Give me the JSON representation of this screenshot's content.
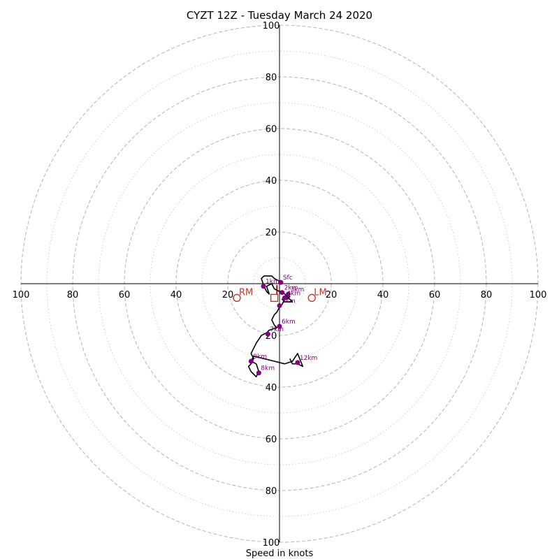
{
  "chart_data": {
    "type": "hodograph",
    "title": "CYZT 12Z - Tuesday March 24 2020",
    "xlabel": "Speed in knots",
    "rings_dashed": [
      20,
      40,
      60,
      80,
      100
    ],
    "rings_dotted": [
      10,
      30,
      50,
      70,
      90
    ],
    "tick_labels": [
      "100",
      "80",
      "60",
      "40",
      "20",
      "20",
      "40",
      "60",
      "80",
      "100"
    ],
    "y_tick_labels": [
      "100",
      "80",
      "60",
      "40",
      "20",
      "20",
      "40",
      "60",
      "80",
      "100"
    ],
    "range": [
      -100,
      100
    ],
    "grid": true,
    "trace": [
      [
        0,
        1
      ],
      [
        -2,
        2
      ],
      [
        -3,
        3
      ],
      [
        -6,
        3
      ],
      [
        -7,
        2
      ],
      [
        -6,
        -1
      ],
      [
        -5,
        -3
      ],
      [
        -4,
        -4
      ],
      [
        -5,
        -1
      ],
      [
        -3,
        0
      ],
      [
        -2,
        -2
      ],
      [
        0,
        -3
      ],
      [
        1,
        -3
      ],
      [
        2,
        -4
      ],
      [
        3,
        -5
      ],
      [
        5,
        -7
      ],
      [
        2,
        -7
      ],
      [
        1,
        -6
      ],
      [
        2,
        -6
      ],
      [
        3,
        -6
      ],
      [
        4,
        -5
      ],
      [
        2,
        -6
      ],
      [
        1,
        -8
      ],
      [
        0,
        -9
      ],
      [
        -1,
        -11
      ],
      [
        -2,
        -12
      ],
      [
        -3,
        -14
      ],
      [
        -2,
        -16
      ],
      [
        -1,
        -17
      ],
      [
        -4,
        -18
      ],
      [
        -5,
        -19
      ],
      [
        -7,
        -20
      ],
      [
        -9,
        -23
      ],
      [
        -10,
        -25
      ],
      [
        -11,
        -27
      ],
      [
        -10,
        -29
      ],
      [
        -11,
        -31
      ],
      [
        -12,
        -32
      ],
      [
        -11,
        -34
      ],
      [
        -9,
        -36
      ],
      [
        -8,
        -34
      ],
      [
        -9,
        -31
      ],
      [
        -11,
        -30
      ],
      [
        -10,
        -28
      ],
      [
        -6,
        -29
      ],
      [
        -2,
        -30
      ],
      [
        2,
        -31
      ],
      [
        5,
        -30
      ],
      [
        7,
        -27
      ],
      [
        9,
        -32
      ],
      [
        7,
        -31
      ],
      [
        5,
        -31
      ],
      [
        4,
        -29
      ]
    ],
    "levels": [
      {
        "label": "Sfc",
        "u": 0.5,
        "v": 0.5
      },
      {
        "label": "1km",
        "u": -6.2,
        "v": -1.0
      },
      {
        "label": "2km",
        "u": 1.0,
        "v": -3.4
      },
      {
        "label": "3km",
        "u": 3.4,
        "v": -4.0
      },
      {
        "label": "4km",
        "u": 2.0,
        "v": -5.5
      },
      {
        "label": "5km",
        "u": 0.0,
        "v": -8.5
      },
      {
        "label": "6km",
        "u": 0.0,
        "v": -16.5
      },
      {
        "label": "7km",
        "u": -4.5,
        "v": -19.5
      },
      {
        "label": "9km",
        "u": -11.0,
        "v": -30.0
      },
      {
        "label": "8km",
        "u": -8.0,
        "v": -34.5
      },
      {
        "label": "12km",
        "u": 7.0,
        "v": -30.5
      }
    ],
    "motions": [
      {
        "label": "RM",
        "u": -16.5,
        "v": -5.5,
        "marker": "circle"
      },
      {
        "label": "LM",
        "u": 12.5,
        "v": -5.5,
        "marker": "circle"
      },
      {
        "label": "",
        "u": -2.0,
        "v": -5.5,
        "marker": "square"
      }
    ],
    "colors": {
      "trace": "#000000",
      "levels": "#800080",
      "motions": "#c0392b",
      "rings": "#bbbbbb",
      "shear": "#cc0000"
    }
  }
}
